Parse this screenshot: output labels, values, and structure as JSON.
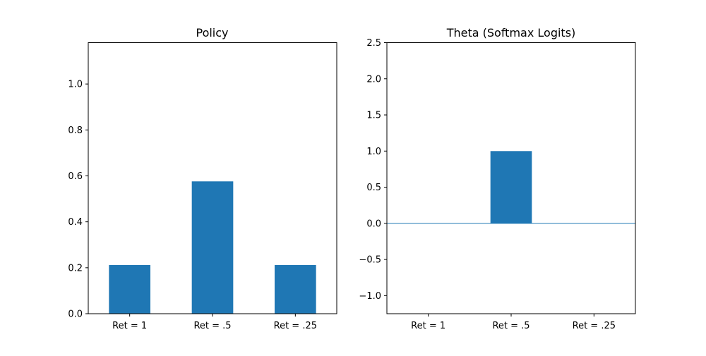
{
  "colors": {
    "bar": "#1f77b4",
    "axis": "#000000",
    "zero_line": "#1f77b4"
  },
  "chart_data": [
    {
      "type": "bar",
      "title": "Policy",
      "categories": [
        "Ret = 1",
        "Ret = .5",
        "Ret = .25"
      ],
      "values": [
        0.2119,
        0.5761,
        0.2119
      ],
      "ylim": [
        0,
        1.18
      ],
      "yticks": [
        0.0,
        0.2,
        0.4,
        0.6,
        0.8,
        1.0
      ],
      "ytick_labels": [
        "0.0",
        "0.2",
        "0.4",
        "0.6",
        "0.8",
        "1.0"
      ],
      "xlabel": "",
      "ylabel": "",
      "grid": false,
      "zero_line": false
    },
    {
      "type": "bar",
      "title": "Theta (Softmax Logits)",
      "categories": [
        "Ret = 1",
        "Ret = .5",
        "Ret = .25"
      ],
      "values": [
        0,
        1.0,
        0
      ],
      "ylim": [
        -1.25,
        2.5
      ],
      "yticks": [
        -1.0,
        -0.5,
        0.0,
        0.5,
        1.0,
        1.5,
        2.0,
        2.5
      ],
      "ytick_labels": [
        "−1.0",
        "−0.5",
        "0.0",
        "0.5",
        "1.0",
        "1.5",
        "2.0",
        "2.5"
      ],
      "xlabel": "",
      "ylabel": "",
      "grid": false,
      "zero_line": true
    }
  ]
}
